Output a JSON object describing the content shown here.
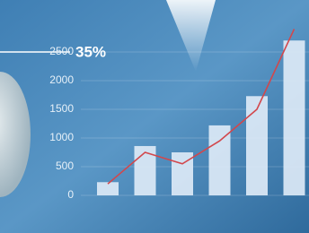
{
  "chart_data": {
    "type": "bar",
    "annotation": "35%",
    "categories": [
      null,
      null,
      null,
      null,
      null,
      null
    ],
    "values": [
      230,
      860,
      750,
      1220,
      1730,
      2700
    ],
    "color": "#dce9f6",
    "line": {
      "color": "#d2474c",
      "values": [
        200,
        750,
        550,
        950,
        1500,
        2900
      ]
    },
    "ylim": [
      0,
      3000
    ],
    "yticks": [
      0,
      500,
      1000,
      1500,
      2000,
      2500
    ],
    "grid": true
  }
}
